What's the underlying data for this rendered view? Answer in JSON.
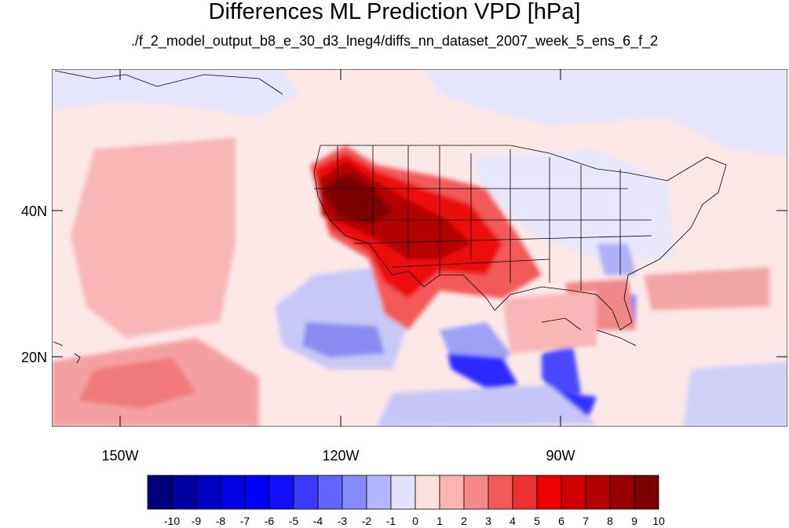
{
  "title": "Differences ML Prediction VPD [hPa]",
  "subtitle": "./f_2_model_output_b8_e_30_d3_lneg4/diffs_nn_dataset_2007_week_5_ens_6_f_2",
  "map": {
    "lat_labels": [
      "40N",
      "20N"
    ],
    "lon_labels": [
      "150W",
      "120W",
      "90W"
    ]
  },
  "colorbar": {
    "labels": [
      "-10",
      "-9",
      "-8",
      "-7",
      "-6",
      "-5",
      "-4",
      "-3",
      "-2",
      "-1",
      "0",
      "1",
      "2",
      "3",
      "4",
      "5",
      "6",
      "7",
      "8",
      "9",
      "10"
    ],
    "colors": [
      "#00007a",
      "#0000a0",
      "#0000c4",
      "#0000e0",
      "#0000f8",
      "#1010ff",
      "#3a3aff",
      "#6262ff",
      "#8a8aff",
      "#b4b4ff",
      "#e2e2fc",
      "#fde0e0",
      "#fab4b4",
      "#f68888",
      "#f25a5a",
      "#ee3030",
      "#ec0000",
      "#d00000",
      "#b40000",
      "#980000",
      "#7c0000"
    ]
  },
  "colors": {
    "background_ocean": "#fde8e8",
    "land_outline": "#000000"
  }
}
